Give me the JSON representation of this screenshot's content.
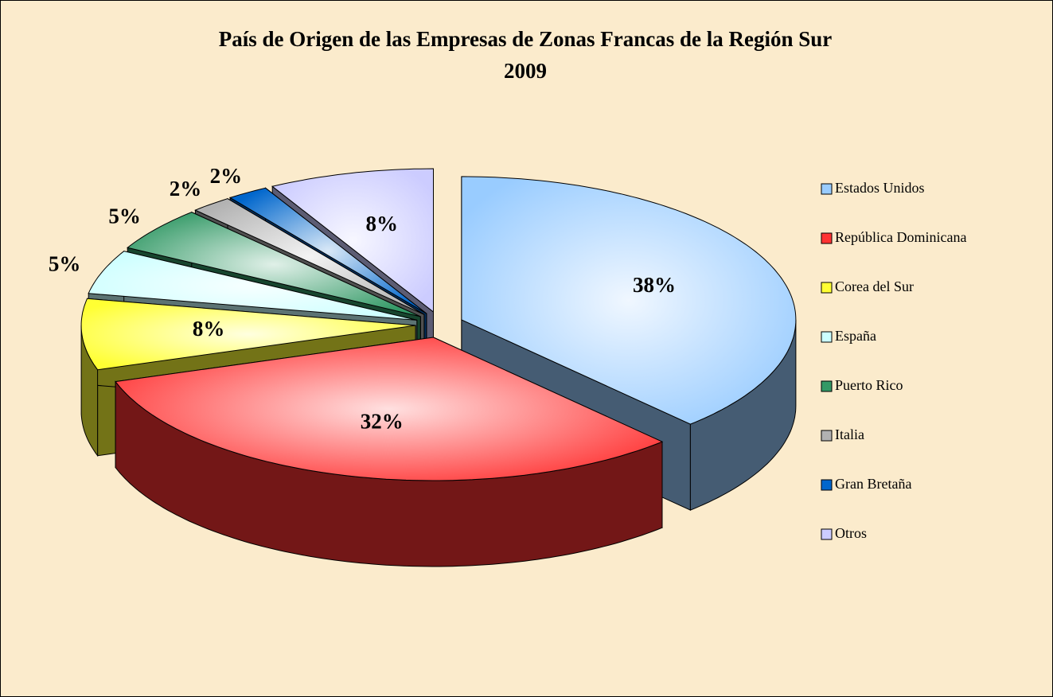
{
  "chart_data": {
    "type": "pie3d",
    "title": "País de Origen de las Empresas de Zonas Francas  de la Región Sur",
    "subtitle": "2009",
    "categories": [
      "Estados Unidos",
      "República Dominicana",
      "Corea del Sur",
      "España",
      "Puerto Rico",
      "Italia",
      "Gran Bretaña",
      "Otros"
    ],
    "values": [
      38,
      32,
      8,
      5,
      5,
      2,
      2,
      8
    ],
    "value_labels": [
      "38%",
      "32%",
      "8%",
      "5%",
      "5%",
      "2%",
      "2%",
      "8%"
    ],
    "colors": [
      "#99ccff",
      "#ff3333",
      "#ffff33",
      "#ccffff",
      "#339966",
      "#b2b2b2",
      "#0066cc",
      "#ccccff"
    ],
    "legend": "right"
  }
}
